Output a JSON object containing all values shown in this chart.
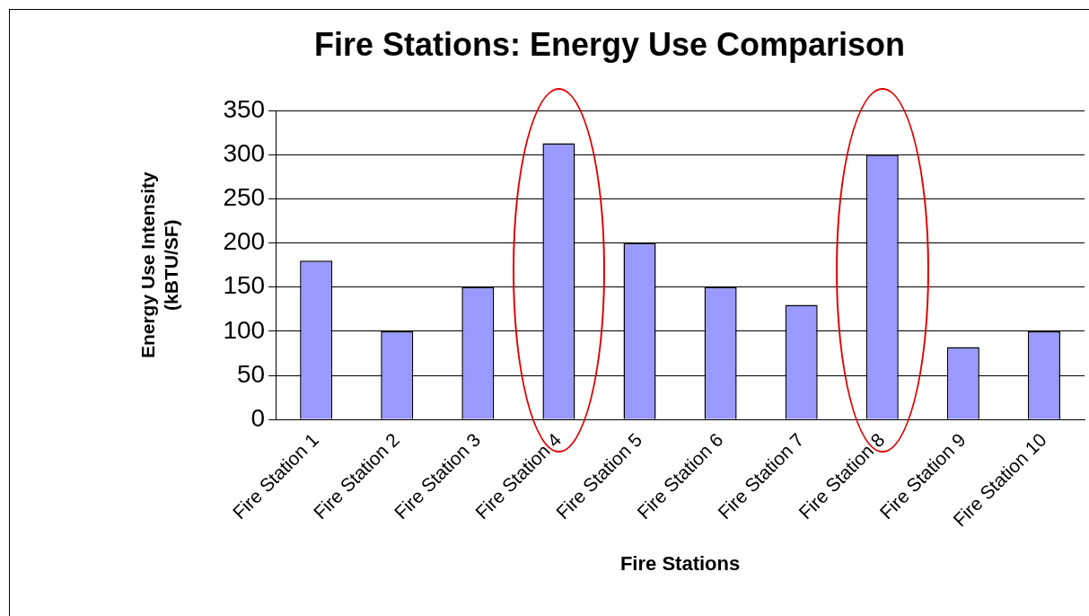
{
  "chart_data": {
    "type": "bar",
    "title": "Fire Stations: Energy Use Comparison",
    "xlabel": "Fire Stations",
    "ylabel": "Energy Use Intensity (kBTU/SF)",
    "categories": [
      "Fire Station 1",
      "Fire Station 2",
      "Fire Station 3",
      "Fire Station 4",
      "Fire Station 5",
      "Fire Station 6",
      "Fire Station 7",
      "Fire Station 8",
      "Fire Station 9",
      "Fire Station 10"
    ],
    "values": [
      180,
      100,
      150,
      313,
      200,
      150,
      130,
      300,
      82,
      100
    ],
    "color": "#9999ff",
    "ylim": [
      0,
      350
    ],
    "yticks": [
      0,
      50,
      100,
      150,
      200,
      250,
      300,
      350
    ],
    "grid": "y",
    "legend": false
  }
}
